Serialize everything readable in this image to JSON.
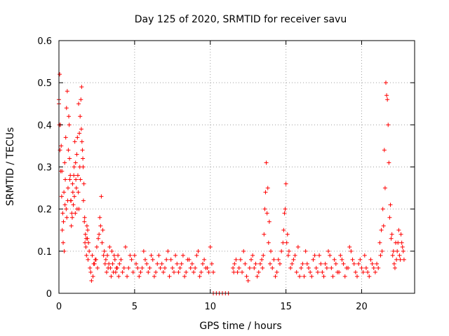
{
  "chart_data": {
    "type": "scatter",
    "title": "Day 125 of 2020, SRMTID for receiver savu",
    "xlabel": "GPS time / hours",
    "ylabel": "SRMTID / TECUs",
    "xlim": [
      0,
      23.5
    ],
    "ylim": [
      0,
      0.6
    ],
    "xticks": [
      0,
      5,
      10,
      15,
      20
    ],
    "xtick_labels": [
      "0",
      "5",
      "10",
      "15",
      "20"
    ],
    "yticks": [
      0,
      0.1,
      0.2,
      0.3,
      0.4,
      0.5,
      0.6
    ],
    "ytick_labels": [
      "0",
      "0.1",
      "0.2",
      "0.3",
      "0.4",
      "0.5",
      "0.6"
    ],
    "grid": true,
    "marker": "+",
    "color": "#ff0000",
    "series": [
      {
        "name": "SRMTID",
        "x": [
          0.0,
          0.05,
          0.1,
          0.15,
          0.2,
          0.25,
          0.3,
          0.35,
          0.4,
          0.45,
          0.5,
          0.55,
          0.6,
          0.65,
          0.7,
          0.75,
          0.8,
          0.85,
          0.9,
          0.95,
          1.0,
          1.05,
          1.1,
          1.15,
          1.2,
          1.25,
          1.3,
          1.35,
          1.4,
          1.45,
          1.5,
          1.55,
          1.6,
          1.65,
          1.7,
          1.75,
          1.8,
          1.85,
          1.9,
          1.95,
          2.0,
          2.1,
          2.2,
          2.3,
          2.4,
          2.5,
          2.6,
          2.7,
          2.8,
          2.9,
          3.0,
          3.1,
          3.2,
          3.3,
          3.4,
          3.5,
          3.6,
          3.7,
          3.8,
          3.9,
          4.0,
          4.2,
          4.4,
          4.6,
          4.8,
          5.0,
          5.2,
          5.4,
          5.6,
          5.8,
          6.0,
          6.2,
          6.4,
          6.6,
          6.8,
          7.0,
          7.2,
          7.4,
          7.6,
          7.8,
          8.0,
          8.2,
          8.4,
          8.6,
          8.8,
          9.0,
          9.2,
          9.4,
          9.6,
          9.8,
          10.0,
          10.1,
          10.2,
          11.5,
          11.6,
          11.8,
          12.0,
          12.2,
          12.4,
          12.6,
          12.8,
          13.0,
          13.2,
          13.4,
          13.5,
          13.6,
          13.7,
          13.8,
          13.9,
          14.0,
          14.2,
          14.4,
          14.6,
          14.8,
          14.9,
          15.0,
          15.1,
          15.2,
          15.4,
          15.6,
          15.8,
          16.0,
          16.2,
          16.4,
          16.6,
          16.8,
          17.0,
          17.2,
          17.4,
          17.6,
          17.8,
          18.0,
          18.2,
          18.4,
          18.6,
          18.8,
          19.0,
          19.2,
          19.4,
          19.6,
          19.8,
          20.0,
          20.2,
          20.4,
          20.6,
          20.8,
          21.0,
          21.2,
          21.3,
          21.4,
          21.5,
          21.6,
          21.7,
          21.8,
          21.9,
          22.0,
          22.1,
          22.2,
          22.3,
          22.4,
          22.5,
          22.6,
          22.7,
          22.8,
          0.0,
          0.03,
          0.07,
          0.12,
          0.18,
          0.22,
          0.28,
          0.33,
          0.38,
          0.42,
          0.48,
          0.52,
          0.58,
          0.62,
          0.68,
          0.72,
          0.78,
          0.82,
          0.88,
          0.92,
          0.98,
          1.02,
          1.08,
          1.12,
          1.18,
          1.22,
          1.28,
          1.32,
          1.38,
          1.42,
          1.48,
          1.52,
          1.58,
          1.62,
          1.68,
          1.72,
          1.78,
          1.82,
          1.88,
          1.92,
          2.05,
          2.15,
          2.25,
          2.35,
          2.45,
          2.55,
          2.65,
          2.75,
          2.85,
          2.95,
          3.05,
          3.15,
          3.25,
          3.35,
          3.45,
          3.55,
          3.65,
          3.75,
          3.85,
          3.95,
          4.1,
          4.3,
          4.5,
          4.7,
          4.9,
          5.1,
          5.3,
          5.5,
          5.7,
          5.9,
          6.1,
          6.3,
          6.5,
          6.7,
          6.9,
          7.1,
          7.3,
          7.5,
          7.7,
          7.9,
          8.1,
          8.3,
          8.5,
          8.7,
          8.9,
          9.1,
          9.3,
          9.5,
          9.7,
          9.9,
          11.55,
          11.7,
          11.9,
          12.1,
          12.3,
          12.5,
          12.7,
          12.9,
          13.1,
          13.3,
          13.45,
          13.55,
          13.65,
          13.75,
          13.85,
          13.95,
          14.1,
          14.3,
          14.5,
          14.7,
          14.85,
          14.95,
          15.05,
          15.15,
          15.3,
          15.5,
          15.7,
          15.9,
          16.1,
          16.3,
          16.5,
          16.7,
          16.9,
          17.1,
          17.3,
          17.5,
          17.7,
          17.9,
          18.1,
          18.3,
          18.5,
          18.7,
          18.9,
          19.1,
          19.3,
          19.5,
          19.7,
          19.9,
          20.1,
          20.3,
          20.5,
          20.7,
          20.9,
          21.1,
          21.25,
          21.35,
          21.45,
          21.55,
          21.65,
          21.75,
          21.85,
          21.95,
          22.05,
          22.15,
          22.25,
          22.35,
          22.45,
          22.55,
          22.65,
          22.75,
          10.2,
          10.4,
          10.6,
          10.8,
          11.0,
          11.2
        ],
        "y": [
          0.46,
          0.52,
          0.4,
          0.35,
          0.29,
          0.19,
          0.17,
          0.1,
          0.21,
          0.37,
          0.44,
          0.48,
          0.25,
          0.42,
          0.32,
          0.28,
          0.22,
          0.19,
          0.26,
          0.21,
          0.3,
          0.36,
          0.31,
          0.25,
          0.2,
          0.28,
          0.45,
          0.38,
          0.42,
          0.46,
          0.49,
          0.34,
          0.3,
          0.26,
          0.18,
          0.14,
          0.13,
          0.16,
          0.15,
          0.12,
          0.1,
          0.05,
          0.09,
          0.07,
          0.08,
          0.11,
          0.13,
          0.18,
          0.23,
          0.15,
          0.1,
          0.08,
          0.09,
          0.07,
          0.06,
          0.1,
          0.05,
          0.08,
          0.06,
          0.09,
          0.07,
          0.05,
          0.11,
          0.06,
          0.08,
          0.09,
          0.06,
          0.05,
          0.1,
          0.07,
          0.06,
          0.08,
          0.05,
          0.09,
          0.07,
          0.06,
          0.1,
          0.08,
          0.05,
          0.07,
          0.06,
          0.09,
          0.05,
          0.08,
          0.07,
          0.06,
          0.1,
          0.05,
          0.08,
          0.06,
          0.11,
          0.07,
          0.05,
          0.06,
          0.07,
          0.05,
          0.08,
          0.1,
          0.04,
          0.06,
          0.09,
          0.07,
          0.05,
          0.08,
          0.09,
          0.2,
          0.31,
          0.25,
          0.17,
          0.1,
          0.08,
          0.05,
          0.07,
          0.12,
          0.19,
          0.26,
          0.14,
          0.1,
          0.07,
          0.09,
          0.11,
          0.06,
          0.04,
          0.07,
          0.05,
          0.08,
          0.06,
          0.09,
          0.05,
          0.07,
          0.1,
          0.06,
          0.08,
          0.05,
          0.09,
          0.07,
          0.06,
          0.11,
          0.08,
          0.05,
          0.07,
          0.06,
          0.09,
          0.05,
          0.08,
          0.06,
          0.07,
          0.12,
          0.15,
          0.2,
          0.34,
          0.5,
          0.46,
          0.31,
          0.21,
          0.14,
          0.1,
          0.06,
          0.08,
          0.12,
          0.09,
          0.14,
          0.11,
          0.08,
          0.45,
          0.4,
          0.34,
          0.29,
          0.23,
          0.15,
          0.12,
          0.24,
          0.31,
          0.27,
          0.2,
          0.18,
          0.22,
          0.34,
          0.4,
          0.27,
          0.22,
          0.16,
          0.18,
          0.24,
          0.28,
          0.23,
          0.19,
          0.27,
          0.33,
          0.37,
          0.24,
          0.2,
          0.3,
          0.27,
          0.39,
          0.36,
          0.32,
          0.22,
          0.17,
          0.12,
          0.11,
          0.09,
          0.13,
          0.08,
          0.06,
          0.03,
          0.04,
          0.07,
          0.08,
          0.06,
          0.14,
          0.16,
          0.12,
          0.09,
          0.07,
          0.05,
          0.06,
          0.11,
          0.04,
          0.07,
          0.09,
          0.05,
          0.06,
          0.04,
          0.08,
          0.06,
          0.04,
          0.09,
          0.05,
          0.07,
          0.04,
          0.06,
          0.08,
          0.05,
          0.09,
          0.04,
          0.07,
          0.06,
          0.05,
          0.08,
          0.04,
          0.06,
          0.09,
          0.05,
          0.07,
          0.04,
          0.08,
          0.06,
          0.05,
          0.09,
          0.04,
          0.07,
          0.06,
          0.05,
          0.05,
          0.08,
          0.06,
          0.05,
          0.07,
          0.03,
          0.08,
          0.06,
          0.04,
          0.07,
          0.06,
          0.14,
          0.24,
          0.19,
          0.12,
          0.07,
          0.06,
          0.04,
          0.08,
          0.1,
          0.15,
          0.2,
          0.12,
          0.09,
          0.06,
          0.08,
          0.05,
          0.04,
          0.07,
          0.1,
          0.06,
          0.04,
          0.09,
          0.05,
          0.07,
          0.04,
          0.06,
          0.09,
          0.04,
          0.07,
          0.05,
          0.08,
          0.04,
          0.06,
          0.1,
          0.07,
          0.04,
          0.08,
          0.05,
          0.06,
          0.04,
          0.07,
          0.05,
          0.06,
          0.09,
          0.1,
          0.16,
          0.25,
          0.47,
          0.4,
          0.18,
          0.13,
          0.09,
          0.07,
          0.12,
          0.1,
          0.15,
          0.08,
          0.12,
          0.1,
          0.0,
          0.0,
          0.0,
          0.0,
          0.0,
          0.0
        ]
      }
    ]
  }
}
